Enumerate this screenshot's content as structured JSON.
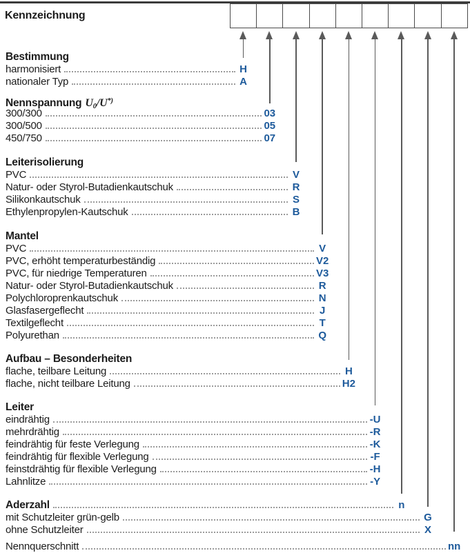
{
  "header": {
    "label": "Kennzeichnung",
    "box_count": 9
  },
  "colors": {
    "code_blue": "#1d5a9b",
    "line_gray": "#5a5a5a",
    "rule_dark": "#3b3b3b",
    "dots_gray": "#9b9b9b",
    "text_dark": "#1c1c1c"
  },
  "sections": [
    {
      "heading": "Bestimmung",
      "column": 1,
      "rows": [
        {
          "label": "harmonisiert",
          "code": "H"
        },
        {
          "label": "nationaler Typ",
          "code": "A"
        }
      ]
    },
    {
      "heading": "Nennspannung",
      "formula": {
        "base1": "U",
        "sub": "0",
        "sep": "/",
        "base2": "U",
        "sup": "*)"
      },
      "column": 2,
      "rows": [
        {
          "label": "300/300",
          "code": "03"
        },
        {
          "label": "300/500",
          "code": "05"
        },
        {
          "label": "450/750",
          "code": "07"
        }
      ]
    },
    {
      "heading": "Leiterisolierung",
      "column": 3,
      "rows": [
        {
          "label": "PVC",
          "code": "V"
        },
        {
          "label": "Natur- oder Styrol-Butadienkautschuk",
          "code": "R"
        },
        {
          "label": "Silikonkautschuk",
          "code": "S"
        },
        {
          "label": "Ethylenpropylen-Kautschuk",
          "code": "B"
        }
      ]
    },
    {
      "heading": "Mantel",
      "column": 4,
      "rows": [
        {
          "label": "PVC",
          "code": "V"
        },
        {
          "label": "PVC, erhöht temperaturbeständig",
          "code": "V2"
        },
        {
          "label": "PVC, für niedrige Temperaturen",
          "code": "V3"
        },
        {
          "label": "Natur- oder Styrol-Butadienkautschuk",
          "code": "R"
        },
        {
          "label": "Polychloroprenkautschuk",
          "code": "N"
        },
        {
          "label": "Glasfasergeflecht",
          "code": "J"
        },
        {
          "label": "Textilgeflecht",
          "code": "T"
        },
        {
          "label": "Polyurethan",
          "code": "Q"
        }
      ]
    },
    {
      "heading": "Aufbau – Besonderheiten",
      "column": 5,
      "rows": [
        {
          "label": "flache, teilbare Leitung",
          "code": "H"
        },
        {
          "label": "flache, nicht teilbare Leitung",
          "code": "H2"
        }
      ]
    },
    {
      "heading": "Leiter",
      "column": 6,
      "rows": [
        {
          "label": "eindrähtig",
          "code": "-U"
        },
        {
          "label": "mehrdrähtig",
          "code": "-R"
        },
        {
          "label": "feindrähtig für feste Verlegung",
          "code": "-K"
        },
        {
          "label": "feindrähtig für flexible Verlegung",
          "code": "-F"
        },
        {
          "label": "feinstdrähtig für flexible Verlegung",
          "code": "-H"
        },
        {
          "label": "Lahnlitze",
          "code": "-Y"
        }
      ]
    },
    {
      "heading": "Aderzahl",
      "heading_code": "n",
      "heading_column": 7,
      "column": 8,
      "rows": [
        {
          "label": "mit Schutzleiter grün-gelb",
          "code": "G"
        },
        {
          "label": "ohne Schutzleiter",
          "code": "X"
        }
      ]
    },
    {
      "heading": null,
      "column": 9,
      "rows": [
        {
          "label": "Nennquerschnitt",
          "code": "nn"
        }
      ]
    }
  ]
}
